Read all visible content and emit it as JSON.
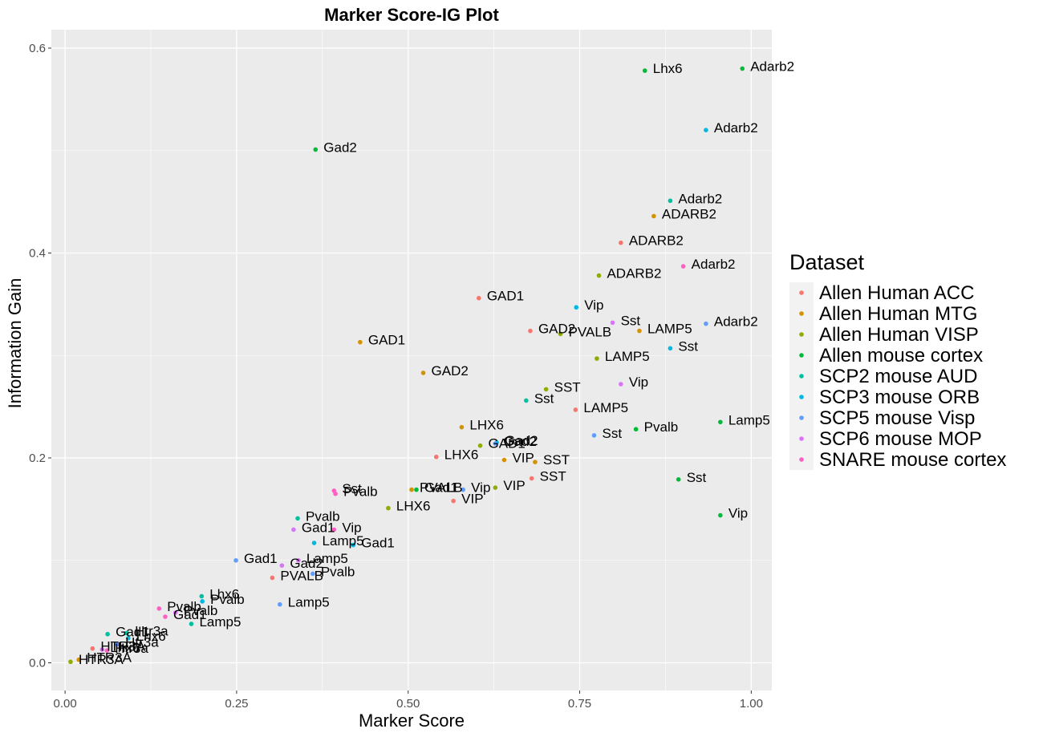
{
  "chart_data": {
    "type": "scatter",
    "title": "Marker Score-IG Plot",
    "xlabel": "Marker Score",
    "ylabel": "Information Gain",
    "xlim": [
      -0.02,
      1.03
    ],
    "ylim": [
      -0.027,
      0.618
    ],
    "x_ticks": [
      0,
      0.25,
      0.5,
      0.75,
      1.0
    ],
    "x_tick_labels": [
      "0.00",
      "0.25",
      "0.50",
      "0.75",
      "1.00"
    ],
    "y_ticks": [
      0,
      0.2,
      0.4,
      0.6
    ],
    "y_tick_labels": [
      "0.0",
      "0.2",
      "0.4",
      "0.6"
    ],
    "grid": true,
    "legend": {
      "title": "Dataset",
      "position": "right"
    },
    "series": [
      {
        "name": "Allen Human ACC",
        "color": "#F8766D",
        "points": [
          {
            "x": 0.81,
            "y": 0.41,
            "label": "ADARB2"
          },
          {
            "x": 0.603,
            "y": 0.356,
            "label": "GAD1"
          },
          {
            "x": 0.678,
            "y": 0.324,
            "label": "GAD2"
          },
          {
            "x": 0.744,
            "y": 0.247,
            "label": "LAMP5"
          },
          {
            "x": 0.541,
            "y": 0.201,
            "label": "LHX6"
          },
          {
            "x": 0.68,
            "y": 0.18,
            "label": "SST"
          },
          {
            "x": 0.566,
            "y": 0.158,
            "label": "VIP"
          },
          {
            "x": 0.302,
            "y": 0.083,
            "label": "PVALB"
          },
          {
            "x": 0.04,
            "y": 0.014,
            "label": "HTR3A"
          }
        ]
      },
      {
        "name": "Allen Human MTG",
        "color": "#D39200",
        "points": [
          {
            "x": 0.858,
            "y": 0.436,
            "label": "ADARB2"
          },
          {
            "x": 0.43,
            "y": 0.313,
            "label": "GAD1"
          },
          {
            "x": 0.522,
            "y": 0.283,
            "label": "GAD2"
          },
          {
            "x": 0.837,
            "y": 0.324,
            "label": "LAMP5"
          },
          {
            "x": 0.578,
            "y": 0.23,
            "label": "LHX6"
          },
          {
            "x": 0.685,
            "y": 0.196,
            "label": "SST"
          },
          {
            "x": 0.64,
            "y": 0.198,
            "label": "VIP"
          },
          {
            "x": 0.505,
            "y": 0.169,
            "label": "PVALB"
          },
          {
            "x": 0.02,
            "y": 0.003,
            "label": "HTR3A"
          }
        ]
      },
      {
        "name": "Allen Human VISP",
        "color": "#93AA00",
        "points": [
          {
            "x": 0.778,
            "y": 0.378,
            "label": "ADARB2"
          },
          {
            "x": 0.722,
            "y": 0.321,
            "label": "PVALB"
          },
          {
            "x": 0.775,
            "y": 0.297,
            "label": "LAMP5"
          },
          {
            "x": 0.701,
            "y": 0.267,
            "label": "SST"
          },
          {
            "x": 0.605,
            "y": 0.212,
            "label": "GAD1"
          },
          {
            "x": 0.627,
            "y": 0.171,
            "label": "VIP"
          },
          {
            "x": 0.471,
            "y": 0.151,
            "label": "LHX6"
          },
          {
            "x": 0.008,
            "y": 0.001,
            "label": "HTR3A"
          }
        ]
      },
      {
        "name": "Allen mouse cortex",
        "color": "#00BA38",
        "points": [
          {
            "x": 0.987,
            "y": 0.58,
            "label": "Adarb2"
          },
          {
            "x": 0.845,
            "y": 0.578,
            "label": "Lhx6"
          },
          {
            "x": 0.365,
            "y": 0.501,
            "label": "Gad2"
          },
          {
            "x": 0.955,
            "y": 0.235,
            "label": "Lamp5"
          },
          {
            "x": 0.832,
            "y": 0.228,
            "label": "Pvalb"
          },
          {
            "x": 0.894,
            "y": 0.179,
            "label": "Sst"
          },
          {
            "x": 0.955,
            "y": 0.144,
            "label": "Vip"
          },
          {
            "x": 0.512,
            "y": 0.169,
            "label": "Gad1"
          }
        ]
      },
      {
        "name": "SCP2 mouse AUD",
        "color": "#00C19F",
        "points": [
          {
            "x": 0.882,
            "y": 0.451,
            "label": "Adarb2"
          },
          {
            "x": 0.672,
            "y": 0.256,
            "label": "Sst"
          },
          {
            "x": 0.339,
            "y": 0.141,
            "label": "Pvalb"
          },
          {
            "x": 0.184,
            "y": 0.038,
            "label": "Lamp5"
          },
          {
            "x": 0.199,
            "y": 0.065,
            "label": "Lhx6"
          },
          {
            "x": 0.062,
            "y": 0.028,
            "label": "Gad1"
          },
          {
            "x": 0.09,
            "y": 0.029,
            "label": "Htr3a"
          }
        ]
      },
      {
        "name": "SCP3 mouse ORB",
        "color": "#00B9E3",
        "points": [
          {
            "x": 0.745,
            "y": 0.347,
            "label": "Vip"
          },
          {
            "x": 0.882,
            "y": 0.307,
            "label": "Sst"
          },
          {
            "x": 0.934,
            "y": 0.52,
            "label": "Adarb2"
          },
          {
            "x": 0.629,
            "y": 0.215,
            "label": "Gad2"
          },
          {
            "x": 0.42,
            "y": 0.115,
            "label": "Gad1"
          },
          {
            "x": 0.363,
            "y": 0.117,
            "label": "Lamp5"
          },
          {
            "x": 0.2,
            "y": 0.06,
            "label": "Pvalb"
          },
          {
            "x": 0.092,
            "y": 0.024,
            "label": "Lhx6"
          }
        ]
      },
      {
        "name": "SCP5 mouse Visp",
        "color": "#619CFF",
        "points": [
          {
            "x": 0.934,
            "y": 0.331,
            "label": "Adarb2"
          },
          {
            "x": 0.771,
            "y": 0.222,
            "label": "Sst"
          },
          {
            "x": 0.627,
            "y": 0.214,
            "label": "Gad2"
          },
          {
            "x": 0.58,
            "y": 0.169,
            "label": "Vip"
          },
          {
            "x": 0.313,
            "y": 0.057,
            "label": "Lamp5"
          },
          {
            "x": 0.249,
            "y": 0.1,
            "label": "Gad1"
          },
          {
            "x": 0.361,
            "y": 0.087,
            "label": "Pvalb"
          },
          {
            "x": 0.076,
            "y": 0.018,
            "label": "Htr3a"
          }
        ]
      },
      {
        "name": "SCP6 mouse MOP",
        "color": "#DB72FB",
        "points": [
          {
            "x": 0.81,
            "y": 0.272,
            "label": "Vip"
          },
          {
            "x": 0.798,
            "y": 0.332,
            "label": "Sst"
          },
          {
            "x": 0.316,
            "y": 0.095,
            "label": "Gad2"
          },
          {
            "x": 0.34,
            "y": 0.1,
            "label": "Lamp5"
          },
          {
            "x": 0.333,
            "y": 0.13,
            "label": "Gad1"
          },
          {
            "x": 0.161,
            "y": 0.049,
            "label": "Pvalb"
          },
          {
            "x": 0.054,
            "y": 0.013,
            "label": "Lhx6"
          }
        ]
      },
      {
        "name": "SNARE mouse cortex",
        "color": "#FF61C3",
        "points": [
          {
            "x": 0.901,
            "y": 0.387,
            "label": "Adarb2"
          },
          {
            "x": 0.392,
            "y": 0.168,
            "label": "Sst"
          },
          {
            "x": 0.394,
            "y": 0.165,
            "label": "Pvalb"
          },
          {
            "x": 0.392,
            "y": 0.13,
            "label": "Vip"
          },
          {
            "x": 0.137,
            "y": 0.053,
            "label": "Pvalb"
          },
          {
            "x": 0.146,
            "y": 0.045,
            "label": "Gad1"
          },
          {
            "x": 0.061,
            "y": 0.012,
            "label": "Htr3a"
          }
        ]
      }
    ]
  }
}
